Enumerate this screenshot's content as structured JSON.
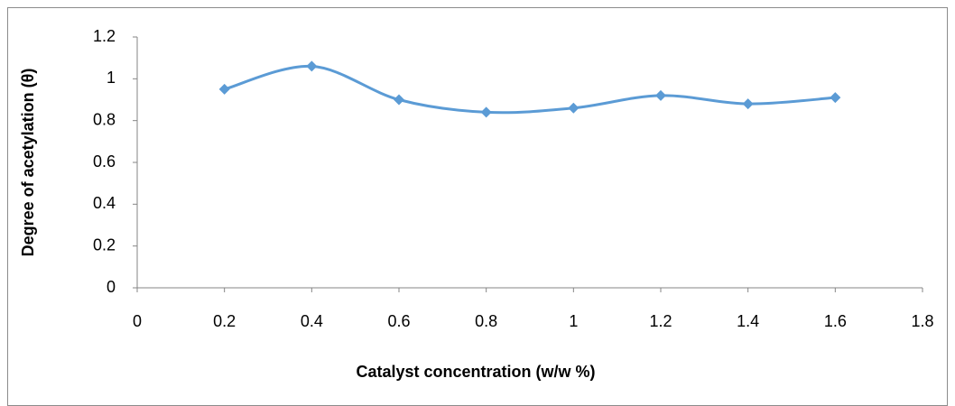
{
  "chart_data": {
    "type": "line",
    "y_label": "Degree of acetylation (θ)",
    "x_label": "Catalyst concentration (w/w %)",
    "x": [
      0.2,
      0.4,
      0.6,
      0.8,
      1,
      1.2,
      1.4,
      1.6
    ],
    "series": [
      {
        "name": "Degree of acetylation",
        "color": "#5b9bd5",
        "values": [
          0.95,
          1.06,
          0.9,
          0.84,
          0.86,
          0.92,
          0.88,
          0.91
        ]
      }
    ],
    "xlim": [
      0,
      1.8
    ],
    "xticks": [
      0,
      0.2,
      0.4,
      0.6,
      0.8,
      1,
      1.2,
      1.4,
      1.6,
      1.8
    ],
    "ylim": [
      0,
      1.2
    ],
    "yticks": [
      0,
      0.2,
      0.4,
      0.6,
      0.8,
      1,
      1.2
    ],
    "smooth": true,
    "grid": false
  }
}
